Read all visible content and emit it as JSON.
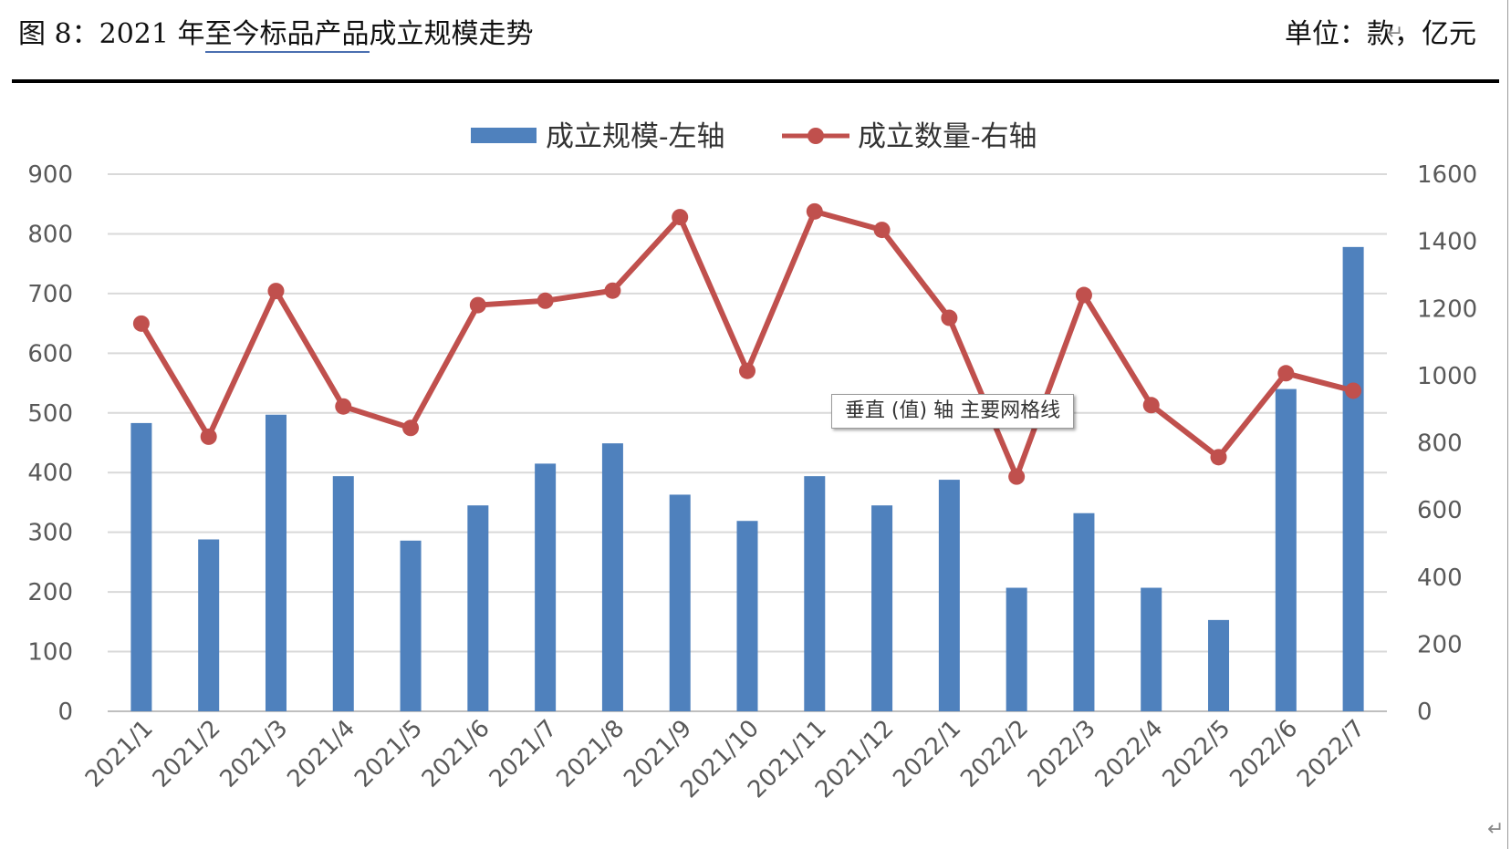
{
  "header": {
    "title_prefix": "图 8：2021 年",
    "title_underlined": "至今标品产品",
    "title_suffix": "成立规模走势",
    "unit": "单位：款，亿元"
  },
  "tooltip": "垂直 (值) 轴 主要网格线",
  "chart_data": {
    "type": "bar+line",
    "categories": [
      "2021/1",
      "2021/2",
      "2021/3",
      "2021/4",
      "2021/5",
      "2021/6",
      "2021/7",
      "2021/8",
      "2021/9",
      "2021/10",
      "2021/11",
      "2021/12",
      "2022/1",
      "2022/2",
      "2022/3",
      "2022/4",
      "2022/5",
      "2022/6",
      "2022/7"
    ],
    "series": [
      {
        "name": "成立规模-左轴",
        "type": "bar",
        "axis": "left",
        "color": "#4f81bd",
        "values": [
          483,
          288,
          497,
          394,
          286,
          345,
          415,
          449,
          363,
          319,
          394,
          345,
          388,
          207,
          332,
          207,
          153,
          540,
          778
        ]
      },
      {
        "name": "成立数量-右轴",
        "type": "line",
        "axis": "right",
        "color": "#c0504d",
        "values": [
          1155,
          818,
          1252,
          908,
          844,
          1210,
          1223,
          1253,
          1472,
          1014,
          1489,
          1434,
          1172,
          699,
          1240,
          912,
          757,
          1007,
          955
        ]
      }
    ],
    "left_axis": {
      "ylim": [
        0,
        900
      ],
      "ticks": [
        "900",
        "800",
        "700",
        "600",
        "500",
        "400",
        "300",
        "200",
        "100",
        "0"
      ]
    },
    "right_axis": {
      "ylim": [
        0,
        1600
      ],
      "ticks": [
        "1600",
        "1400",
        "1200",
        "1000",
        "800",
        "600",
        "400",
        "200",
        "0"
      ]
    },
    "grid": true,
    "legend_position": "top-center"
  }
}
